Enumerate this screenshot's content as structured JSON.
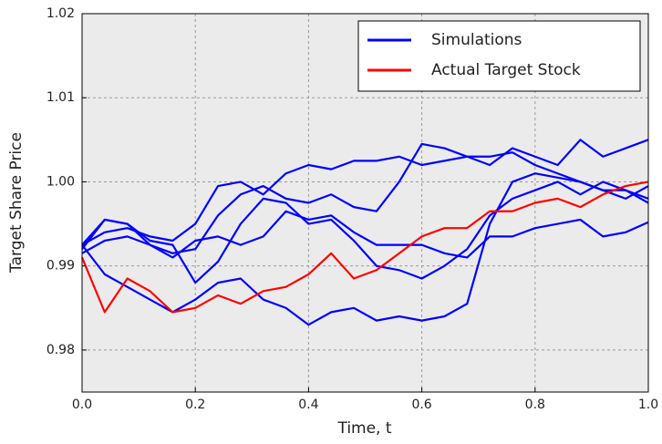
{
  "chart_data": {
    "type": "line",
    "xlabel": "Time, t",
    "ylabel": "Target Share Price",
    "x": [
      0,
      0.04,
      0.08,
      0.12,
      0.16,
      0.2,
      0.24,
      0.28,
      0.32,
      0.36,
      0.4,
      0.44,
      0.48,
      0.52,
      0.56,
      0.6,
      0.64,
      0.68,
      0.72,
      0.76,
      0.8,
      0.84,
      0.88,
      0.92,
      0.96,
      1.0
    ],
    "series": [
      {
        "name": "Simulations",
        "color": "#0000ff",
        "values": [
          [
            0.992,
            0.9955,
            0.995,
            0.9925,
            0.9915,
            0.992,
            0.996,
            0.9985,
            0.9995,
            0.998,
            0.9975,
            0.9985,
            0.997,
            0.9965,
            1.0,
            1.0045,
            1.004,
            1.003,
            1.002,
            1.004,
            1.003,
            1.002,
            1.005,
            1.003,
            1.004,
            1.005
          ],
          [
            0.9925,
            0.989,
            0.9875,
            0.986,
            0.9845,
            0.986,
            0.988,
            0.9885,
            0.986,
            0.985,
            0.983,
            0.9845,
            0.985,
            0.9835,
            0.984,
            0.9835,
            0.984,
            0.9855,
            0.995,
            1.0,
            1.001,
            1.0005,
            1.0,
            0.999,
            0.999,
            0.998
          ],
          [
            0.9925,
            0.994,
            0.9945,
            0.9935,
            0.993,
            0.995,
            0.9995,
            1.0,
            0.9985,
            1.001,
            1.002,
            1.0015,
            1.0025,
            1.0025,
            1.003,
            1.002,
            1.0025,
            1.003,
            1.003,
            1.0035,
            1.002,
            1.001,
            1.0,
            0.999,
            0.998,
            0.9995
          ],
          [
            0.9915,
            0.993,
            0.9935,
            0.9925,
            0.991,
            0.993,
            0.9935,
            0.9925,
            0.9935,
            0.9965,
            0.9955,
            0.996,
            0.994,
            0.9925,
            0.9925,
            0.9925,
            0.9915,
            0.991,
            0.9935,
            0.9935,
            0.9945,
            0.995,
            0.9955,
            0.9935,
            0.994,
            0.9952
          ],
          [
            0.9925,
            0.9955,
            0.995,
            0.993,
            0.9925,
            0.988,
            0.9905,
            0.995,
            0.998,
            0.9975,
            0.995,
            0.9955,
            0.993,
            0.99,
            0.9895,
            0.9885,
            0.99,
            0.992,
            0.996,
            0.998,
            0.999,
            1.0,
            0.9985,
            1.0,
            0.999,
            0.9975
          ]
        ]
      },
      {
        "name": "Actual Target Stock",
        "color": "#ff0000",
        "values": [
          0.991,
          0.9845,
          0.9885,
          0.987,
          0.9845,
          0.985,
          0.9865,
          0.9855,
          0.987,
          0.9875,
          0.989,
          0.9915,
          0.9885,
          0.9895,
          0.9915,
          0.9935,
          0.9945,
          0.9945,
          0.9965,
          0.9965,
          0.9975,
          0.998,
          0.997,
          0.9985,
          0.9995,
          1.0
        ]
      }
    ],
    "xlim": [
      0,
      1
    ],
    "ylim": [
      0.975,
      1.02
    ],
    "xticks": [
      {
        "value": 0,
        "label": "0.0"
      },
      0.2,
      0.4,
      0.6,
      0.8,
      {
        "value": 1,
        "label": "1.0"
      }
    ],
    "yticks": [
      0.98,
      0.99,
      {
        "value": 1,
        "label": "1.00"
      },
      1.01,
      1.02
    ],
    "grid": true,
    "legend": "upper right"
  }
}
